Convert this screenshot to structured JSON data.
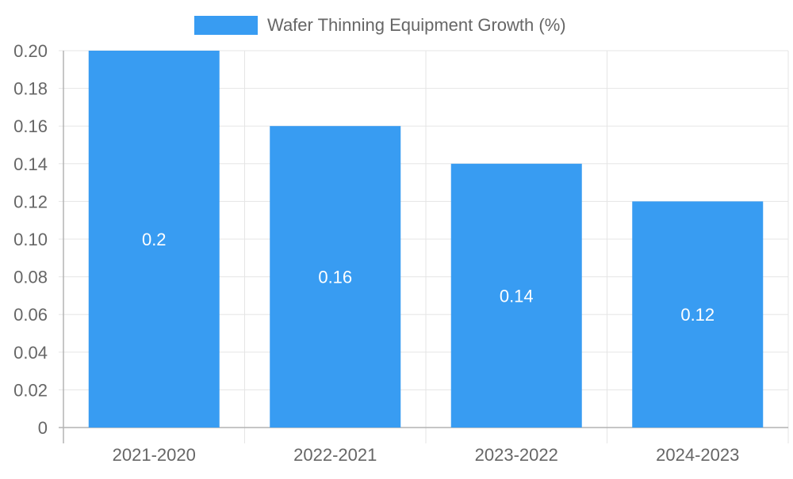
{
  "chart_data": {
    "type": "bar",
    "categories": [
      "2021-2020",
      "2022-2021",
      "2023-2022",
      "2024-2023"
    ],
    "series": [
      {
        "name": "Wafer Thinning Equipment Growth (%)",
        "values": [
          0.2,
          0.16,
          0.14,
          0.12
        ],
        "data_labels": [
          "0.2",
          "0.16",
          "0.14",
          "0.12"
        ],
        "color": "#389cf2"
      }
    ],
    "ylim": [
      0,
      0.2
    ],
    "yticks": [
      0,
      0.02,
      0.04,
      0.06,
      0.08,
      0.1,
      0.12,
      0.14,
      0.16,
      0.18,
      0.2
    ],
    "ytick_labels": [
      "0",
      "0.02",
      "0.04",
      "0.06",
      "0.08",
      "0.10",
      "0.12",
      "0.14",
      "0.16",
      "0.18",
      "0.20"
    ],
    "title": "",
    "xlabel": "",
    "ylabel": "",
    "grid": true,
    "legend_position": "top-center"
  },
  "colors": {
    "grid": "#e5e5e5",
    "axis": "#b3b3b3",
    "tick_text": "#666666",
    "label_text": "#ffffff"
  }
}
